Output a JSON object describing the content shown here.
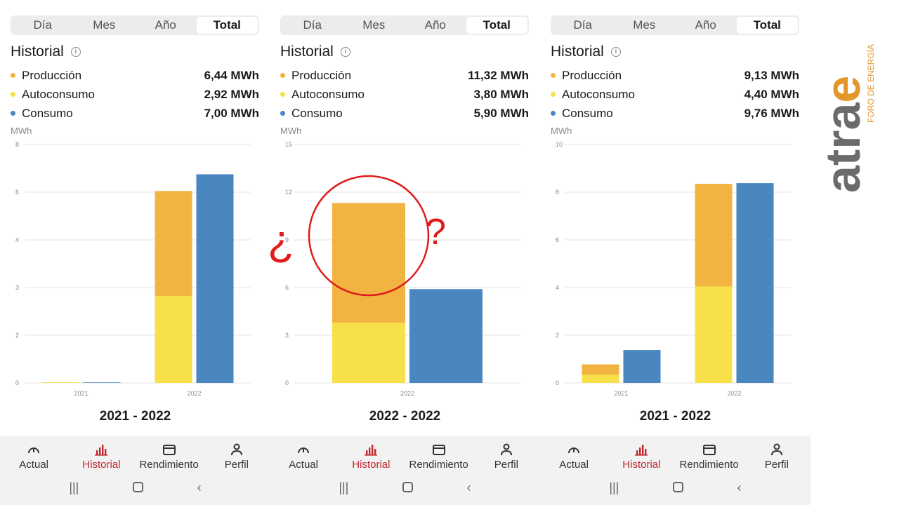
{
  "brand": {
    "logo_text": "atrae",
    "logo_subtext": "FORO DE ENERGÍA",
    "accent": "#e3962a",
    "dark": "#6b6b6b"
  },
  "colors": {
    "produccion": "#f2b441",
    "autoconsumo": "#f7e04a",
    "consumo": "#4a86c0",
    "active_tab": "#c0262c",
    "question_mark": "#e01b1b"
  },
  "panels": [
    {
      "segments": [
        "Día",
        "Mes",
        "Año",
        "Total"
      ],
      "active_segment": "Total",
      "title": "Historial",
      "legend": [
        {
          "label": "Producción",
          "value": "6,44 MWh",
          "color": "#f2b441"
        },
        {
          "label": "Autoconsumo",
          "value": "2,92 MWh",
          "color": "#f7e04a"
        },
        {
          "label": "Consumo",
          "value": "7,00 MWh",
          "color": "#4a86c0"
        }
      ],
      "unit": "MWh",
      "range": "2021 - 2022",
      "chart_data": {
        "type": "bar",
        "categories": [
          "2021",
          "2022"
        ],
        "y_ticks": [
          "0",
          "2",
          "3",
          "4",
          "6",
          "8"
        ],
        "ylim": [
          0,
          8
        ],
        "series": [
          {
            "name": "Autoconsumo",
            "values": [
              0.02,
              2.92
            ]
          },
          {
            "name": "Producción",
            "values": [
              0.02,
              6.44
            ]
          },
          {
            "name": "Consumo",
            "values": [
              0.02,
              7.0
            ]
          }
        ]
      }
    },
    {
      "segments": [
        "Día",
        "Mes",
        "Año",
        "Total"
      ],
      "active_segment": "Total",
      "title": "Historial",
      "legend": [
        {
          "label": "Producción",
          "value": "11,32 MWh",
          "color": "#f2b441"
        },
        {
          "label": "Autoconsumo",
          "value": "3,80 MWh",
          "color": "#f7e04a"
        },
        {
          "label": "Consumo",
          "value": "5,90 MWh",
          "color": "#4a86c0"
        }
      ],
      "unit": "MWh",
      "range": "2022 - 2022",
      "annotation": {
        "open": "¿",
        "close": "?"
      },
      "chart_data": {
        "type": "bar",
        "categories": [
          "2022"
        ],
        "y_ticks": [
          "0",
          "3",
          "6",
          "9",
          "12",
          "15"
        ],
        "ylim": [
          0,
          15
        ],
        "series": [
          {
            "name": "Autoconsumo",
            "values": [
              3.8
            ]
          },
          {
            "name": "Producción",
            "values": [
              11.32
            ]
          },
          {
            "name": "Consumo",
            "values": [
              5.9
            ]
          }
        ]
      }
    },
    {
      "segments": [
        "Día",
        "Mes",
        "Año",
        "Total"
      ],
      "active_segment": "Total",
      "title": "Historial",
      "legend": [
        {
          "label": "Producción",
          "value": "9,13 MWh",
          "color": "#f2b441"
        },
        {
          "label": "Autoconsumo",
          "value": "4,40 MWh",
          "color": "#f7e04a"
        },
        {
          "label": "Consumo",
          "value": "9,76 MWh",
          "color": "#4a86c0"
        }
      ],
      "unit": "MWh",
      "range": "2021 - 2022",
      "chart_data": {
        "type": "bar",
        "categories": [
          "2021",
          "2022"
        ],
        "y_ticks": [
          "0",
          "2",
          "4",
          "6",
          "8",
          "10"
        ],
        "ylim": [
          0,
          10
        ],
        "series": [
          {
            "name": "Autoconsumo",
            "values": [
              0.35,
              4.05
            ]
          },
          {
            "name": "Producción",
            "values": [
              0.78,
              8.35
            ]
          },
          {
            "name": "Consumo",
            "values": [
              1.38,
              8.38
            ]
          }
        ]
      }
    }
  ],
  "nav": {
    "tabs": [
      {
        "label": "Actual",
        "icon": "gauge-icon",
        "active": false
      },
      {
        "label": "Historial",
        "icon": "bar-chart-icon",
        "active": true
      },
      {
        "label": "Rendimiento",
        "icon": "wallet-icon",
        "active": false
      },
      {
        "label": "Perfil",
        "icon": "person-icon",
        "active": false
      }
    ],
    "system": [
      "recent-apps-icon",
      "home-icon",
      "back-icon"
    ]
  }
}
